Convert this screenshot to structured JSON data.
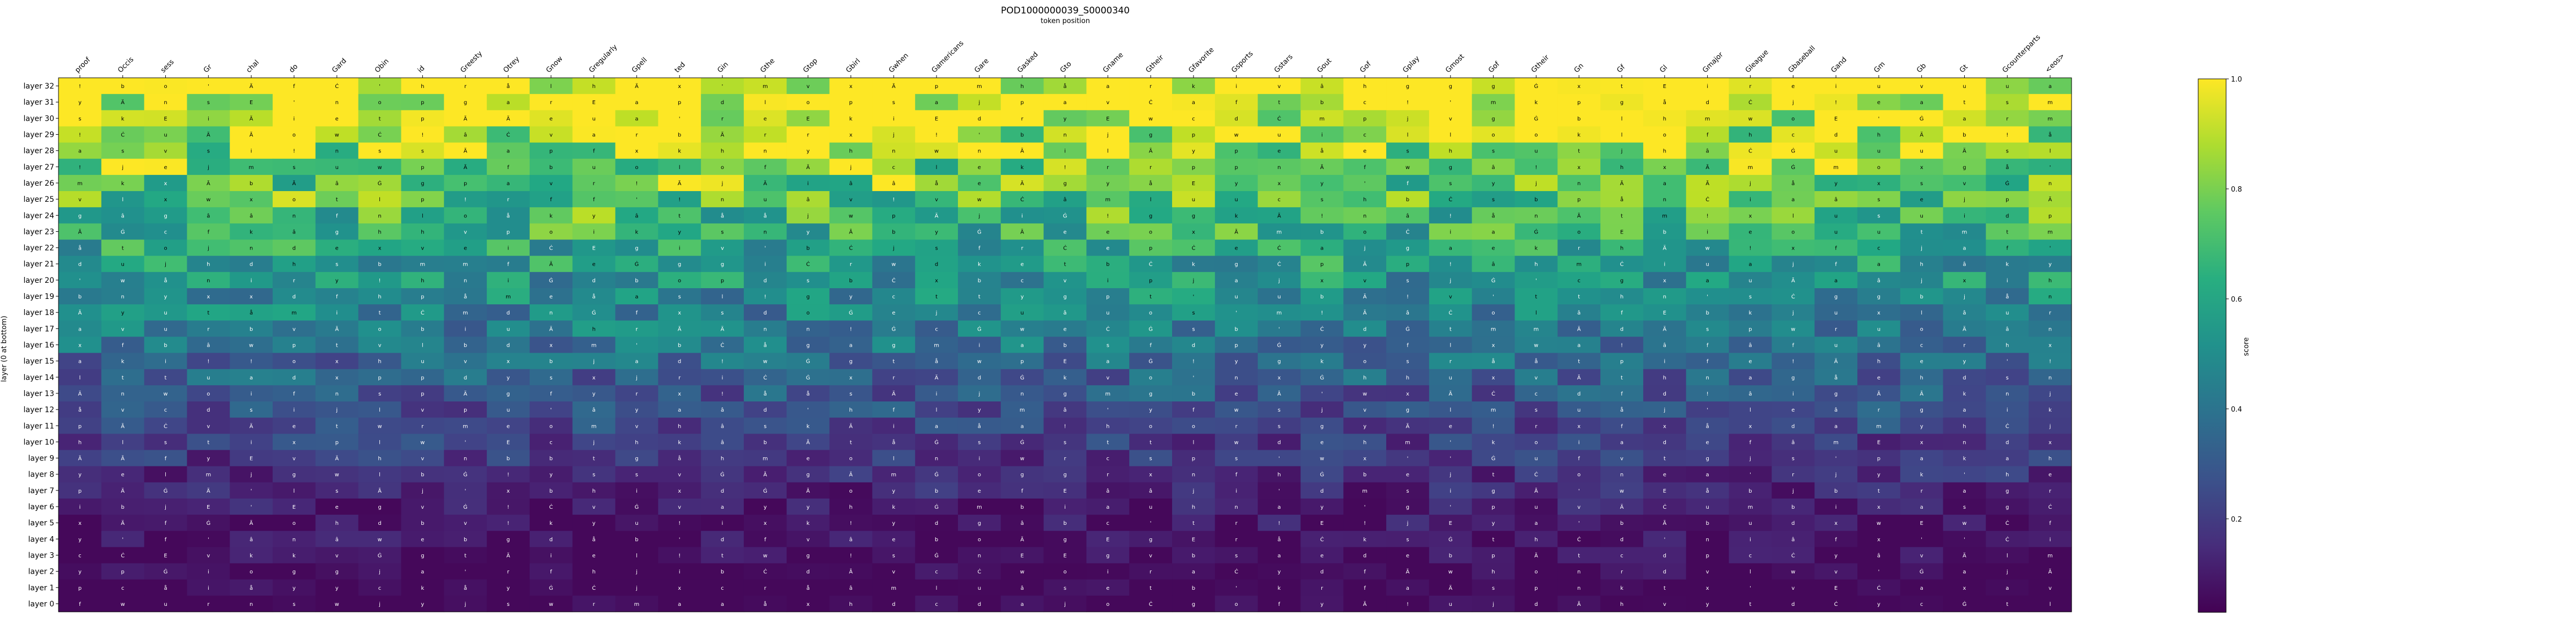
{
  "chart_data": {
    "type": "heatmap",
    "title": "POD1000000039_S0000340",
    "xlabel": "token position",
    "ylabel": "layer (0 at bottom)",
    "colorbar_label": "score",
    "colormap": "viridis",
    "vmin": 0.0,
    "vmax": 1.0,
    "colorbar_ticks": [
      "0.2",
      "0.4",
      "0.6",
      "0.8",
      "1.0"
    ],
    "tokens": [
      "proof",
      "Occis",
      "sess",
      "Gr",
      "chal",
      "do",
      "Gard",
      "Obin",
      "id",
      "Greesty",
      "Otrey",
      "Gnow",
      "Gregularly",
      "Gpell",
      "ted",
      "Gin",
      "Gthe",
      "Gtop",
      "Gbirl",
      "Gwhen",
      "Gamericans",
      "Gare",
      "Gasked",
      "Gto",
      "Gname",
      "Gtheir",
      "Gfavorite",
      "Gsports",
      "Gstars",
      "Gout",
      "Gof",
      "Gplay",
      "Gmost",
      "Gof",
      "Gtheir",
      "Gn",
      "Gf",
      "Gl",
      "Gmajor",
      "Gleague",
      "Gbaseball",
      "Gand",
      "Gm",
      "Gb",
      "Gt",
      "Gcounterparts",
      "<eos>"
    ],
    "layers": [
      "layer 32",
      "layer 31",
      "layer 30",
      "layer 29",
      "layer 28",
      "layer 27",
      "layer 26",
      "layer 25",
      "layer 24",
      "layer 23",
      "layer 22",
      "layer 21",
      "layer 20",
      "layer 19",
      "layer 18",
      "layer 17",
      "layer 16",
      "layer 15",
      "layer 14",
      "layer 13",
      "layer 12",
      "layer 11",
      "layer 10",
      "layer 9",
      "layer 8",
      "layer 7",
      "layer 6",
      "layer 5",
      "layer 4",
      "layer 3",
      "layer 2",
      "layer 1",
      "layer 0"
    ],
    "cell_glyphs": [
      "a",
      "t",
      "e",
      "s",
      "o",
      "i",
      "n",
      "r",
      "l",
      "d",
      "m",
      "p",
      "k",
      "w",
      "c",
      "f",
      "y",
      "g",
      "b",
      "v",
      "u",
      "h",
      "j",
      "x",
      "E",
      "Ã",
      "Ä",
      "Ġ",
      "Ċ",
      "â",
      "å",
      "!",
      "'"
    ],
    "grid": false
  }
}
